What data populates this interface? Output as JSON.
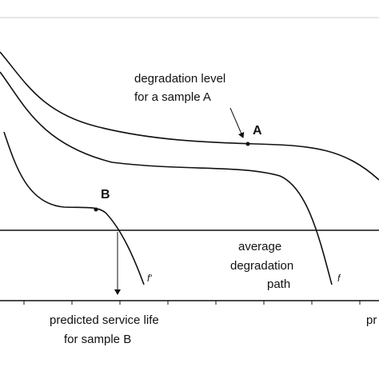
{
  "labels": {
    "sample_a_note": [
      "degradation level",
      "for a sample A"
    ],
    "point_a": "A",
    "point_b": "B",
    "average_path": [
      "average",
      "degradation",
      "path"
    ],
    "curve_b_name": "f'",
    "curve_mid_name": "f",
    "service_life_b": [
      "predicted service life",
      "for sample B"
    ],
    "cut_text": "pr"
  }
}
